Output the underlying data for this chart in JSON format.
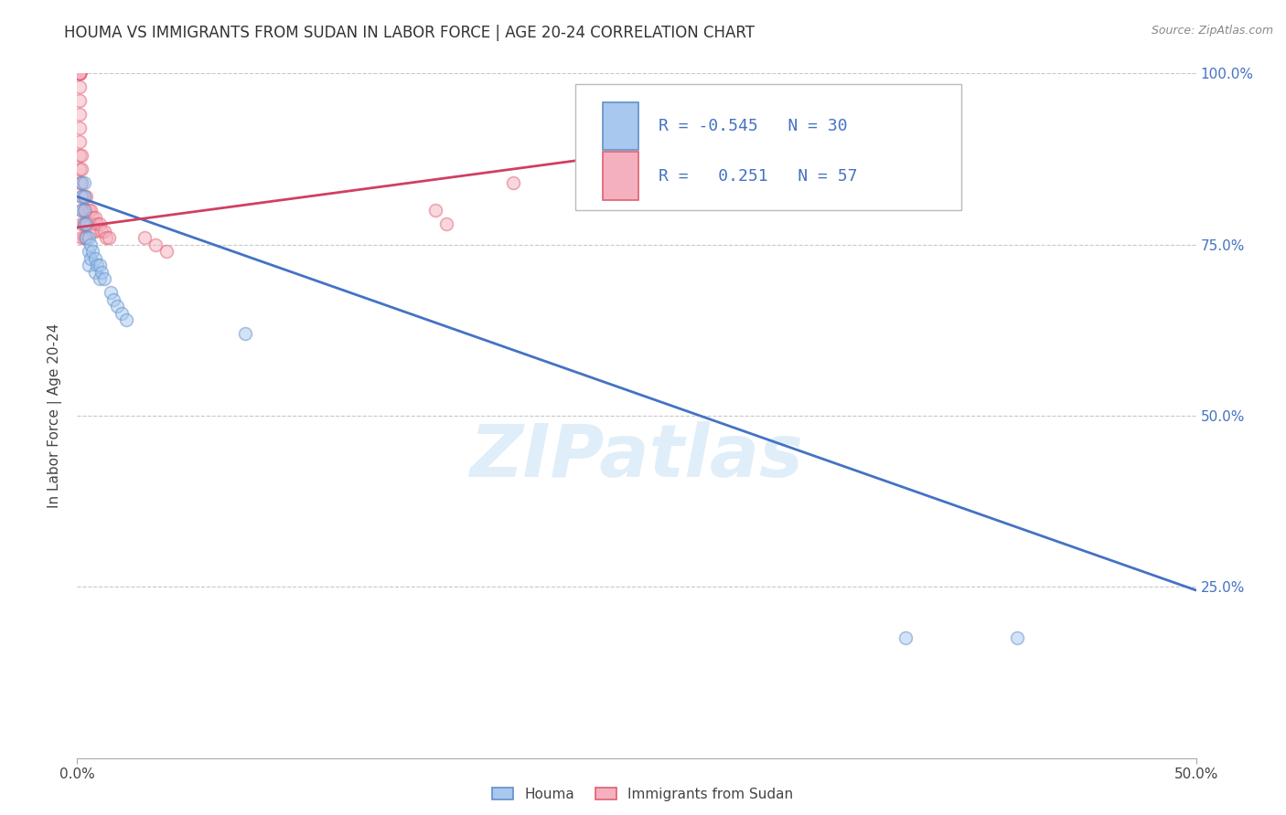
{
  "title": "HOUMA VS IMMIGRANTS FROM SUDAN IN LABOR FORCE | AGE 20-24 CORRELATION CHART",
  "source": "Source: ZipAtlas.com",
  "ylabel": "In Labor Force | Age 20-24",
  "xlim": [
    0.0,
    0.5
  ],
  "ylim": [
    0.0,
    1.0
  ],
  "xtick_positions": [
    0.0,
    0.5
  ],
  "xtick_labels": [
    "0.0%",
    "50.0%"
  ],
  "ytick_positions": [
    0.25,
    0.5,
    0.75,
    1.0
  ],
  "ytick_labels": [
    "25.0%",
    "50.0%",
    "75.0%",
    "100.0%"
  ],
  "houma_color": "#a8c8f0",
  "sudan_color": "#f5b0c0",
  "houma_edge_color": "#6090c8",
  "sudan_edge_color": "#e06070",
  "trend_houma_color": "#4472c4",
  "trend_sudan_color": "#d04060",
  "watermark_text": "ZIPatlas",
  "legend_R_houma": "-0.545",
  "legend_N_houma": "30",
  "legend_R_sudan": "0.251",
  "legend_N_sudan": "57",
  "houma_x": [
    0.002,
    0.002,
    0.002,
    0.003,
    0.003,
    0.003,
    0.003,
    0.004,
    0.004,
    0.005,
    0.005,
    0.005,
    0.006,
    0.006,
    0.007,
    0.008,
    0.008,
    0.009,
    0.01,
    0.01,
    0.011,
    0.012,
    0.015,
    0.016,
    0.018,
    0.02,
    0.022,
    0.075,
    0.37,
    0.42
  ],
  "houma_y": [
    0.84,
    0.82,
    0.8,
    0.84,
    0.82,
    0.8,
    0.78,
    0.78,
    0.76,
    0.76,
    0.74,
    0.72,
    0.75,
    0.73,
    0.74,
    0.73,
    0.71,
    0.72,
    0.72,
    0.7,
    0.71,
    0.7,
    0.68,
    0.67,
    0.66,
    0.65,
    0.64,
    0.62,
    0.175,
    0.175
  ],
  "sudan_x": [
    0.001,
    0.001,
    0.001,
    0.001,
    0.001,
    0.001,
    0.001,
    0.001,
    0.001,
    0.001,
    0.001,
    0.001,
    0.001,
    0.001,
    0.001,
    0.001,
    0.001,
    0.001,
    0.001,
    0.001,
    0.002,
    0.002,
    0.002,
    0.002,
    0.002,
    0.002,
    0.002,
    0.003,
    0.003,
    0.003,
    0.003,
    0.004,
    0.004,
    0.004,
    0.004,
    0.005,
    0.005,
    0.006,
    0.006,
    0.007,
    0.007,
    0.008,
    0.008,
    0.009,
    0.01,
    0.011,
    0.012,
    0.013,
    0.014,
    0.03,
    0.035,
    0.04,
    0.16,
    0.165,
    0.195,
    0.23,
    0.24
  ],
  "sudan_y": [
    1.0,
    1.0,
    1.0,
    1.0,
    1.0,
    1.0,
    1.0,
    1.0,
    1.0,
    1.0,
    1.0,
    1.0,
    0.98,
    0.96,
    0.94,
    0.92,
    0.9,
    0.88,
    0.86,
    0.84,
    0.88,
    0.86,
    0.84,
    0.82,
    0.8,
    0.78,
    0.76,
    0.82,
    0.8,
    0.78,
    0.76,
    0.82,
    0.8,
    0.78,
    0.76,
    0.8,
    0.78,
    0.8,
    0.78,
    0.79,
    0.77,
    0.79,
    0.77,
    0.78,
    0.78,
    0.77,
    0.77,
    0.76,
    0.76,
    0.76,
    0.75,
    0.74,
    0.8,
    0.78,
    0.84,
    0.86,
    0.84
  ],
  "houma_trend_x": [
    0.0,
    0.5
  ],
  "houma_trend_y": [
    0.82,
    0.245
  ],
  "sudan_trend_x": [
    0.0,
    0.24
  ],
  "sudan_trend_y": [
    0.775,
    0.88
  ],
  "grid_color": "#c8c8c8",
  "bg_color": "#ffffff",
  "marker_size": 100,
  "marker_alpha": 0.5,
  "marker_lw": 1.2
}
